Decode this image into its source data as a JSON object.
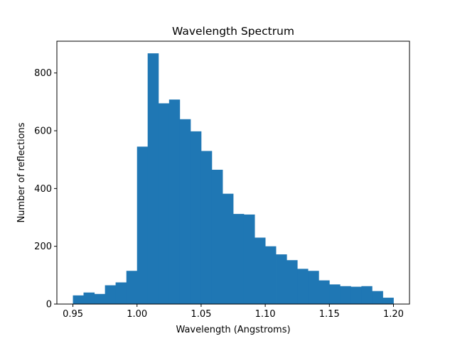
{
  "chart_data": {
    "type": "bar",
    "subtype": "histogram",
    "title": "Wavelength Spectrum",
    "xlabel": "Wavelength (Angstroms)",
    "ylabel": "Number of reflections",
    "xlim": [
      0.9375,
      1.2125
    ],
    "ylim": [
      0,
      910
    ],
    "xticks": [
      0.95,
      1.0,
      1.05,
      1.1,
      1.15,
      1.2
    ],
    "xtick_labels": [
      "0.95",
      "1.00",
      "1.05",
      "1.10",
      "1.15",
      "1.20"
    ],
    "yticks": [
      0,
      200,
      400,
      600,
      800
    ],
    "ytick_labels": [
      "0",
      "200",
      "400",
      "600",
      "800"
    ],
    "bin_edges": [
      0.95,
      0.9583,
      0.9667,
      0.975,
      0.9833,
      0.9917,
      1.0,
      1.0083,
      1.0167,
      1.025,
      1.0333,
      1.0417,
      1.05,
      1.0583,
      1.0667,
      1.075,
      1.0833,
      1.0917,
      1.1,
      1.1083,
      1.1167,
      1.125,
      1.1333,
      1.1417,
      1.15,
      1.1583,
      1.1667,
      1.175,
      1.1833,
      1.1917,
      1.2
    ],
    "values": [
      30,
      40,
      35,
      65,
      75,
      115,
      545,
      868,
      695,
      708,
      640,
      598,
      530,
      465,
      382,
      312,
      310,
      230,
      200,
      172,
      152,
      122,
      115,
      82,
      68,
      62,
      60,
      62,
      45,
      22
    ],
    "bar_color": "#1f77b4",
    "grid": false
  }
}
